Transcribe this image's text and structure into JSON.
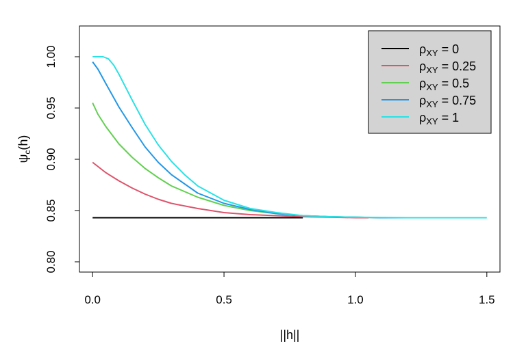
{
  "chart_data": {
    "type": "line",
    "title": "",
    "xlabel": "||h||",
    "ylabel": "ψc(h)",
    "xlim": [
      -0.05,
      1.55
    ],
    "ylim": [
      0.79,
      1.03
    ],
    "x_ticks": [
      0.0,
      0.5,
      1.0,
      1.5
    ],
    "x_tick_labels": [
      "0.0",
      "0.5",
      "1.0",
      "1.5"
    ],
    "y_ticks": [
      0.8,
      0.85,
      0.9,
      0.95,
      1.0
    ],
    "y_tick_labels": [
      "0.80",
      "0.85",
      "0.90",
      "0.95",
      "1.00"
    ],
    "grid": false,
    "legend_position": "top-right",
    "legend_background": "#d3d3d3",
    "series": [
      {
        "name": "ρXY = 0",
        "label_main": "ρ",
        "label_sub": "XY",
        "label_rest": " = 0",
        "color": "#000000",
        "x": [
          0.0,
          0.2,
          0.4,
          0.6,
          0.8
        ],
        "y": [
          0.843,
          0.843,
          0.843,
          0.843,
          0.843
        ]
      },
      {
        "name": "ρXY = 0.25",
        "label_main": "ρ",
        "label_sub": "XY",
        "label_rest": " = 0.25",
        "color": "#df536b",
        "x": [
          0.0,
          0.02,
          0.05,
          0.1,
          0.15,
          0.2,
          0.25,
          0.3,
          0.4,
          0.5,
          0.6,
          0.7,
          0.8,
          0.9,
          1.0,
          1.05
        ],
        "y": [
          0.897,
          0.893,
          0.887,
          0.879,
          0.872,
          0.866,
          0.861,
          0.857,
          0.852,
          0.848,
          0.846,
          0.845,
          0.844,
          0.8435,
          0.843,
          0.843
        ]
      },
      {
        "name": "ρXY = 0.5",
        "label_main": "ρ",
        "label_sub": "XY",
        "label_rest": " = 0.5",
        "color": "#61d04f",
        "x": [
          0.0,
          0.02,
          0.05,
          0.1,
          0.15,
          0.2,
          0.25,
          0.3,
          0.4,
          0.5,
          0.6,
          0.7,
          0.8,
          0.9,
          1.0,
          1.1
        ],
        "y": [
          0.955,
          0.944,
          0.932,
          0.915,
          0.902,
          0.891,
          0.882,
          0.874,
          0.863,
          0.855,
          0.85,
          0.847,
          0.845,
          0.844,
          0.8435,
          0.843
        ]
      },
      {
        "name": "ρXY = 0.75",
        "label_main": "ρ",
        "label_sub": "XY",
        "label_rest": " = 0.75",
        "color": "#2297e6",
        "x": [
          0.0,
          0.02,
          0.05,
          0.1,
          0.15,
          0.2,
          0.25,
          0.3,
          0.4,
          0.5,
          0.6,
          0.7,
          0.8,
          0.9,
          1.0,
          1.1,
          1.2,
          1.35
        ],
        "y": [
          0.995,
          0.988,
          0.974,
          0.951,
          0.931,
          0.912,
          0.897,
          0.885,
          0.867,
          0.857,
          0.851,
          0.847,
          0.845,
          0.844,
          0.8435,
          0.843,
          0.843,
          0.843
        ]
      },
      {
        "name": "ρXY = 1",
        "label_main": "ρ",
        "label_sub": "XY",
        "label_rest": " = 1",
        "color": "#28e2e5",
        "x": [
          0.0,
          0.02,
          0.04,
          0.06,
          0.08,
          0.1,
          0.15,
          0.2,
          0.25,
          0.3,
          0.35,
          0.4,
          0.5,
          0.6,
          0.7,
          0.8,
          0.9,
          1.0,
          1.2,
          1.5
        ],
        "y": [
          1.0,
          1.0,
          1.0,
          0.998,
          0.992,
          0.983,
          0.958,
          0.934,
          0.914,
          0.898,
          0.885,
          0.874,
          0.86,
          0.852,
          0.848,
          0.845,
          0.844,
          0.8435,
          0.843,
          0.843
        ]
      }
    ]
  }
}
